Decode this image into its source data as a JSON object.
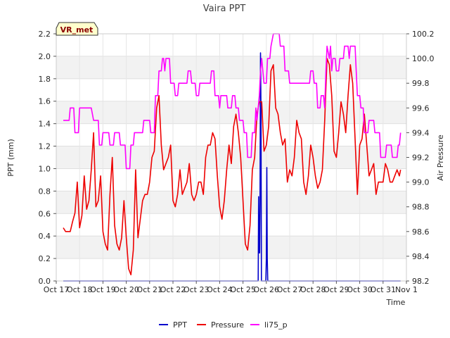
{
  "chart_data": {
    "type": "line",
    "title": "Vaira PPT",
    "xlabel": "Time",
    "ylabel_left": "PPT (mm)",
    "ylabel_right": "Air Pressure",
    "badge": "VR_met",
    "x_range_days": [
      17,
      32
    ],
    "y_left_range": [
      0.0,
      2.2
    ],
    "y_right_range": [
      98.2,
      100.2
    ],
    "x_tick_labels": [
      "Oct 17",
      "Oct 18",
      "Oct 19",
      "Oct 20",
      "Oct 21",
      "Oct 22",
      "Oct 23",
      "Oct 24",
      "Oct 25",
      "Oct 26",
      "Oct 27",
      "Oct 28",
      "Oct 29",
      "Oct 30",
      "Oct 31",
      "Nov 1"
    ],
    "y_left_ticks": [
      "0.0",
      "0.2",
      "0.4",
      "0.6",
      "0.8",
      "1.0",
      "1.2",
      "1.4",
      "1.6",
      "1.8",
      "2.0",
      "2.2"
    ],
    "y_right_ticks": [
      "98.2",
      "98.4",
      "98.6",
      "98.8",
      "99.0",
      "99.2",
      "99.4",
      "99.6",
      "99.8",
      "100.0",
      "100.2"
    ],
    "grid_bands": true,
    "legend_position": "bottom-center",
    "series": [
      {
        "name": "PPT",
        "axis": "left",
        "color": "#0000cc",
        "points": [
          [
            17.3,
            0.0
          ],
          [
            25.65,
            0.0
          ],
          [
            25.67,
            0.75
          ],
          [
            25.69,
            0.25
          ],
          [
            25.71,
            0.25
          ],
          [
            25.73,
            0.7
          ],
          [
            25.75,
            2.03
          ],
          [
            25.77,
            1.5
          ],
          [
            25.79,
            0.0
          ],
          [
            25.98,
            0.0
          ],
          [
            26.0,
            0.2
          ],
          [
            26.02,
            1.01
          ],
          [
            26.04,
            0.2
          ],
          [
            26.06,
            0.0
          ],
          [
            31.75,
            0.0
          ]
        ]
      },
      {
        "name": "Pressure",
        "axis": "right",
        "color": "#ee0000",
        "points": [
          [
            17.3,
            98.63
          ],
          [
            17.4,
            98.6
          ],
          [
            17.5,
            98.6
          ],
          [
            17.6,
            98.6
          ],
          [
            17.7,
            98.68
          ],
          [
            17.8,
            98.75
          ],
          [
            17.9,
            99.0
          ],
          [
            18.0,
            98.63
          ],
          [
            18.1,
            98.73
          ],
          [
            18.2,
            99.05
          ],
          [
            18.3,
            98.78
          ],
          [
            18.4,
            98.85
          ],
          [
            18.5,
            99.1
          ],
          [
            18.6,
            99.4
          ],
          [
            18.7,
            98.8
          ],
          [
            18.8,
            98.85
          ],
          [
            18.9,
            99.05
          ],
          [
            19.0,
            98.6
          ],
          [
            19.1,
            98.5
          ],
          [
            19.2,
            98.45
          ],
          [
            19.3,
            98.9
          ],
          [
            19.4,
            99.2
          ],
          [
            19.5,
            98.65
          ],
          [
            19.6,
            98.5
          ],
          [
            19.7,
            98.45
          ],
          [
            19.8,
            98.55
          ],
          [
            19.9,
            98.85
          ],
          [
            20.0,
            98.55
          ],
          [
            20.1,
            98.3
          ],
          [
            20.2,
            98.25
          ],
          [
            20.3,
            98.45
          ],
          [
            20.4,
            99.1
          ],
          [
            20.5,
            98.55
          ],
          [
            20.6,
            98.7
          ],
          [
            20.7,
            98.85
          ],
          [
            20.8,
            98.9
          ],
          [
            20.9,
            98.9
          ],
          [
            21.0,
            99.0
          ],
          [
            21.1,
            99.2
          ],
          [
            21.2,
            99.25
          ],
          [
            21.3,
            99.6
          ],
          [
            21.4,
            99.7
          ],
          [
            21.5,
            99.3
          ],
          [
            21.6,
            99.1
          ],
          [
            21.7,
            99.15
          ],
          [
            21.8,
            99.2
          ],
          [
            21.9,
            99.3
          ],
          [
            22.0,
            98.85
          ],
          [
            22.1,
            98.8
          ],
          [
            22.2,
            98.9
          ],
          [
            22.3,
            99.1
          ],
          [
            22.4,
            98.9
          ],
          [
            22.5,
            98.95
          ],
          [
            22.6,
            99.0
          ],
          [
            22.7,
            99.15
          ],
          [
            22.8,
            98.9
          ],
          [
            22.9,
            98.85
          ],
          [
            23.0,
            98.9
          ],
          [
            23.1,
            99.0
          ],
          [
            23.2,
            99.0
          ],
          [
            23.3,
            98.9
          ],
          [
            23.4,
            99.2
          ],
          [
            23.5,
            99.3
          ],
          [
            23.6,
            99.3
          ],
          [
            23.7,
            99.4
          ],
          [
            23.8,
            99.35
          ],
          [
            23.9,
            99.05
          ],
          [
            24.0,
            98.8
          ],
          [
            24.1,
            98.7
          ],
          [
            24.2,
            98.85
          ],
          [
            24.3,
            99.1
          ],
          [
            24.4,
            99.3
          ],
          [
            24.5,
            99.15
          ],
          [
            24.6,
            99.45
          ],
          [
            24.7,
            99.55
          ],
          [
            24.8,
            99.4
          ],
          [
            24.9,
            99.2
          ],
          [
            25.0,
            98.85
          ],
          [
            25.1,
            98.5
          ],
          [
            25.2,
            98.45
          ],
          [
            25.3,
            98.65
          ],
          [
            25.4,
            99.1
          ],
          [
            25.5,
            99.2
          ],
          [
            25.6,
            99.55
          ],
          [
            25.7,
            99.65
          ],
          [
            25.8,
            99.65
          ],
          [
            25.9,
            99.25
          ],
          [
            26.0,
            99.3
          ],
          [
            26.1,
            99.45
          ],
          [
            26.2,
            99.9
          ],
          [
            26.3,
            99.95
          ],
          [
            26.4,
            99.6
          ],
          [
            26.5,
            99.55
          ],
          [
            26.6,
            99.4
          ],
          [
            26.7,
            99.3
          ],
          [
            26.8,
            99.35
          ],
          [
            26.9,
            99.0
          ],
          [
            27.0,
            99.1
          ],
          [
            27.1,
            99.05
          ],
          [
            27.2,
            99.2
          ],
          [
            27.3,
            99.5
          ],
          [
            27.4,
            99.4
          ],
          [
            27.5,
            99.35
          ],
          [
            27.6,
            99.0
          ],
          [
            27.7,
            98.9
          ],
          [
            27.8,
            99.05
          ],
          [
            27.9,
            99.3
          ],
          [
            28.0,
            99.2
          ],
          [
            28.1,
            99.05
          ],
          [
            28.2,
            98.95
          ],
          [
            28.3,
            99.0
          ],
          [
            28.4,
            99.1
          ],
          [
            28.5,
            99.5
          ],
          [
            28.6,
            100.0
          ],
          [
            28.7,
            99.95
          ],
          [
            28.8,
            99.7
          ],
          [
            28.9,
            99.25
          ],
          [
            29.0,
            99.2
          ],
          [
            29.1,
            99.4
          ],
          [
            29.2,
            99.65
          ],
          [
            29.3,
            99.55
          ],
          [
            29.4,
            99.4
          ],
          [
            29.5,
            99.7
          ],
          [
            29.6,
            99.95
          ],
          [
            29.7,
            99.8
          ],
          [
            29.8,
            99.35
          ],
          [
            29.9,
            98.9
          ],
          [
            30.0,
            99.3
          ],
          [
            30.1,
            99.35
          ],
          [
            30.2,
            99.55
          ],
          [
            30.3,
            99.3
          ],
          [
            30.4,
            99.05
          ],
          [
            30.5,
            99.1
          ],
          [
            30.6,
            99.15
          ],
          [
            30.7,
            98.9
          ],
          [
            30.8,
            99.0
          ],
          [
            30.9,
            99.0
          ],
          [
            31.0,
            99.0
          ],
          [
            31.1,
            99.15
          ],
          [
            31.2,
            99.1
          ],
          [
            31.3,
            99.0
          ],
          [
            31.4,
            99.0
          ],
          [
            31.5,
            99.05
          ],
          [
            31.6,
            99.1
          ],
          [
            31.7,
            99.05
          ],
          [
            31.75,
            99.1
          ]
        ]
      },
      {
        "name": "li75_p",
        "axis": "left",
        "color": "#ff00ff",
        "points": [
          [
            17.3,
            1.43
          ],
          [
            17.55,
            1.43
          ],
          [
            17.6,
            1.54
          ],
          [
            17.75,
            1.54
          ],
          [
            17.8,
            1.32
          ],
          [
            17.95,
            1.32
          ],
          [
            18.0,
            1.54
          ],
          [
            18.5,
            1.54
          ],
          [
            18.6,
            1.43
          ],
          [
            18.8,
            1.43
          ],
          [
            18.85,
            1.21
          ],
          [
            18.95,
            1.21
          ],
          [
            19.0,
            1.32
          ],
          [
            19.25,
            1.32
          ],
          [
            19.3,
            1.21
          ],
          [
            19.45,
            1.21
          ],
          [
            19.5,
            1.32
          ],
          [
            19.7,
            1.32
          ],
          [
            19.75,
            1.21
          ],
          [
            19.95,
            1.21
          ],
          [
            20.0,
            1.0
          ],
          [
            20.15,
            1.0
          ],
          [
            20.2,
            1.21
          ],
          [
            20.3,
            1.21
          ],
          [
            20.35,
            1.32
          ],
          [
            20.7,
            1.32
          ],
          [
            20.75,
            1.43
          ],
          [
            21.0,
            1.43
          ],
          [
            21.05,
            1.32
          ],
          [
            21.2,
            1.32
          ],
          [
            21.25,
            1.65
          ],
          [
            21.35,
            1.65
          ],
          [
            21.4,
            1.87
          ],
          [
            21.5,
            1.87
          ],
          [
            21.55,
            1.98
          ],
          [
            21.6,
            1.98
          ],
          [
            21.65,
            1.87
          ],
          [
            21.7,
            1.98
          ],
          [
            21.85,
            1.98
          ],
          [
            21.9,
            1.76
          ],
          [
            22.05,
            1.76
          ],
          [
            22.1,
            1.65
          ],
          [
            22.2,
            1.65
          ],
          [
            22.25,
            1.76
          ],
          [
            22.6,
            1.76
          ],
          [
            22.65,
            1.87
          ],
          [
            22.75,
            1.87
          ],
          [
            22.8,
            1.76
          ],
          [
            22.95,
            1.76
          ],
          [
            23.0,
            1.65
          ],
          [
            23.1,
            1.65
          ],
          [
            23.15,
            1.76
          ],
          [
            23.6,
            1.76
          ],
          [
            23.65,
            1.87
          ],
          [
            23.75,
            1.87
          ],
          [
            23.8,
            1.65
          ],
          [
            23.95,
            1.65
          ],
          [
            24.0,
            1.54
          ],
          [
            24.05,
            1.65
          ],
          [
            24.3,
            1.65
          ],
          [
            24.35,
            1.54
          ],
          [
            24.5,
            1.54
          ],
          [
            24.55,
            1.65
          ],
          [
            24.65,
            1.65
          ],
          [
            24.7,
            1.54
          ],
          [
            24.8,
            1.54
          ],
          [
            24.85,
            1.43
          ],
          [
            25.0,
            1.43
          ],
          [
            25.05,
            1.32
          ],
          [
            25.15,
            1.32
          ],
          [
            25.2,
            1.1
          ],
          [
            25.35,
            1.1
          ],
          [
            25.4,
            1.32
          ],
          [
            25.5,
            1.32
          ],
          [
            25.55,
            1.54
          ],
          [
            25.6,
            1.43
          ],
          [
            25.65,
            1.54
          ],
          [
            25.7,
            1.65
          ],
          [
            25.75,
            1.87
          ],
          [
            25.8,
            1.98
          ],
          [
            25.85,
            1.87
          ],
          [
            25.9,
            1.76
          ],
          [
            26.0,
            1.76
          ],
          [
            26.05,
            1.98
          ],
          [
            26.15,
            1.98
          ],
          [
            26.2,
            2.09
          ],
          [
            26.3,
            2.2
          ],
          [
            26.55,
            2.2
          ],
          [
            26.6,
            2.09
          ],
          [
            26.75,
            2.09
          ],
          [
            26.8,
            1.87
          ],
          [
            26.95,
            1.87
          ],
          [
            27.0,
            1.76
          ],
          [
            27.85,
            1.76
          ],
          [
            27.9,
            1.87
          ],
          [
            28.0,
            1.87
          ],
          [
            28.05,
            1.76
          ],
          [
            28.15,
            1.76
          ],
          [
            28.2,
            1.54
          ],
          [
            28.3,
            1.54
          ],
          [
            28.35,
            1.65
          ],
          [
            28.45,
            1.65
          ],
          [
            28.5,
            1.54
          ],
          [
            28.55,
            1.87
          ],
          [
            28.6,
            2.09
          ],
          [
            28.7,
            1.98
          ],
          [
            28.75,
            2.09
          ],
          [
            28.8,
            1.87
          ],
          [
            28.85,
            1.98
          ],
          [
            28.95,
            1.98
          ],
          [
            29.0,
            1.87
          ],
          [
            29.1,
            1.87
          ],
          [
            29.15,
            1.98
          ],
          [
            29.3,
            1.98
          ],
          [
            29.35,
            2.09
          ],
          [
            29.5,
            2.09
          ],
          [
            29.55,
            1.98
          ],
          [
            29.6,
            2.09
          ],
          [
            29.8,
            2.09
          ],
          [
            29.85,
            1.87
          ],
          [
            29.9,
            1.65
          ],
          [
            30.0,
            1.65
          ],
          [
            30.05,
            1.54
          ],
          [
            30.15,
            1.54
          ],
          [
            30.2,
            1.32
          ],
          [
            30.35,
            1.32
          ],
          [
            30.4,
            1.43
          ],
          [
            30.6,
            1.43
          ],
          [
            30.65,
            1.32
          ],
          [
            30.85,
            1.32
          ],
          [
            30.9,
            1.1
          ],
          [
            31.1,
            1.1
          ],
          [
            31.15,
            1.21
          ],
          [
            31.35,
            1.21
          ],
          [
            31.4,
            1.1
          ],
          [
            31.6,
            1.1
          ],
          [
            31.65,
            1.21
          ],
          [
            31.7,
            1.21
          ],
          [
            31.75,
            1.32
          ]
        ]
      }
    ]
  }
}
